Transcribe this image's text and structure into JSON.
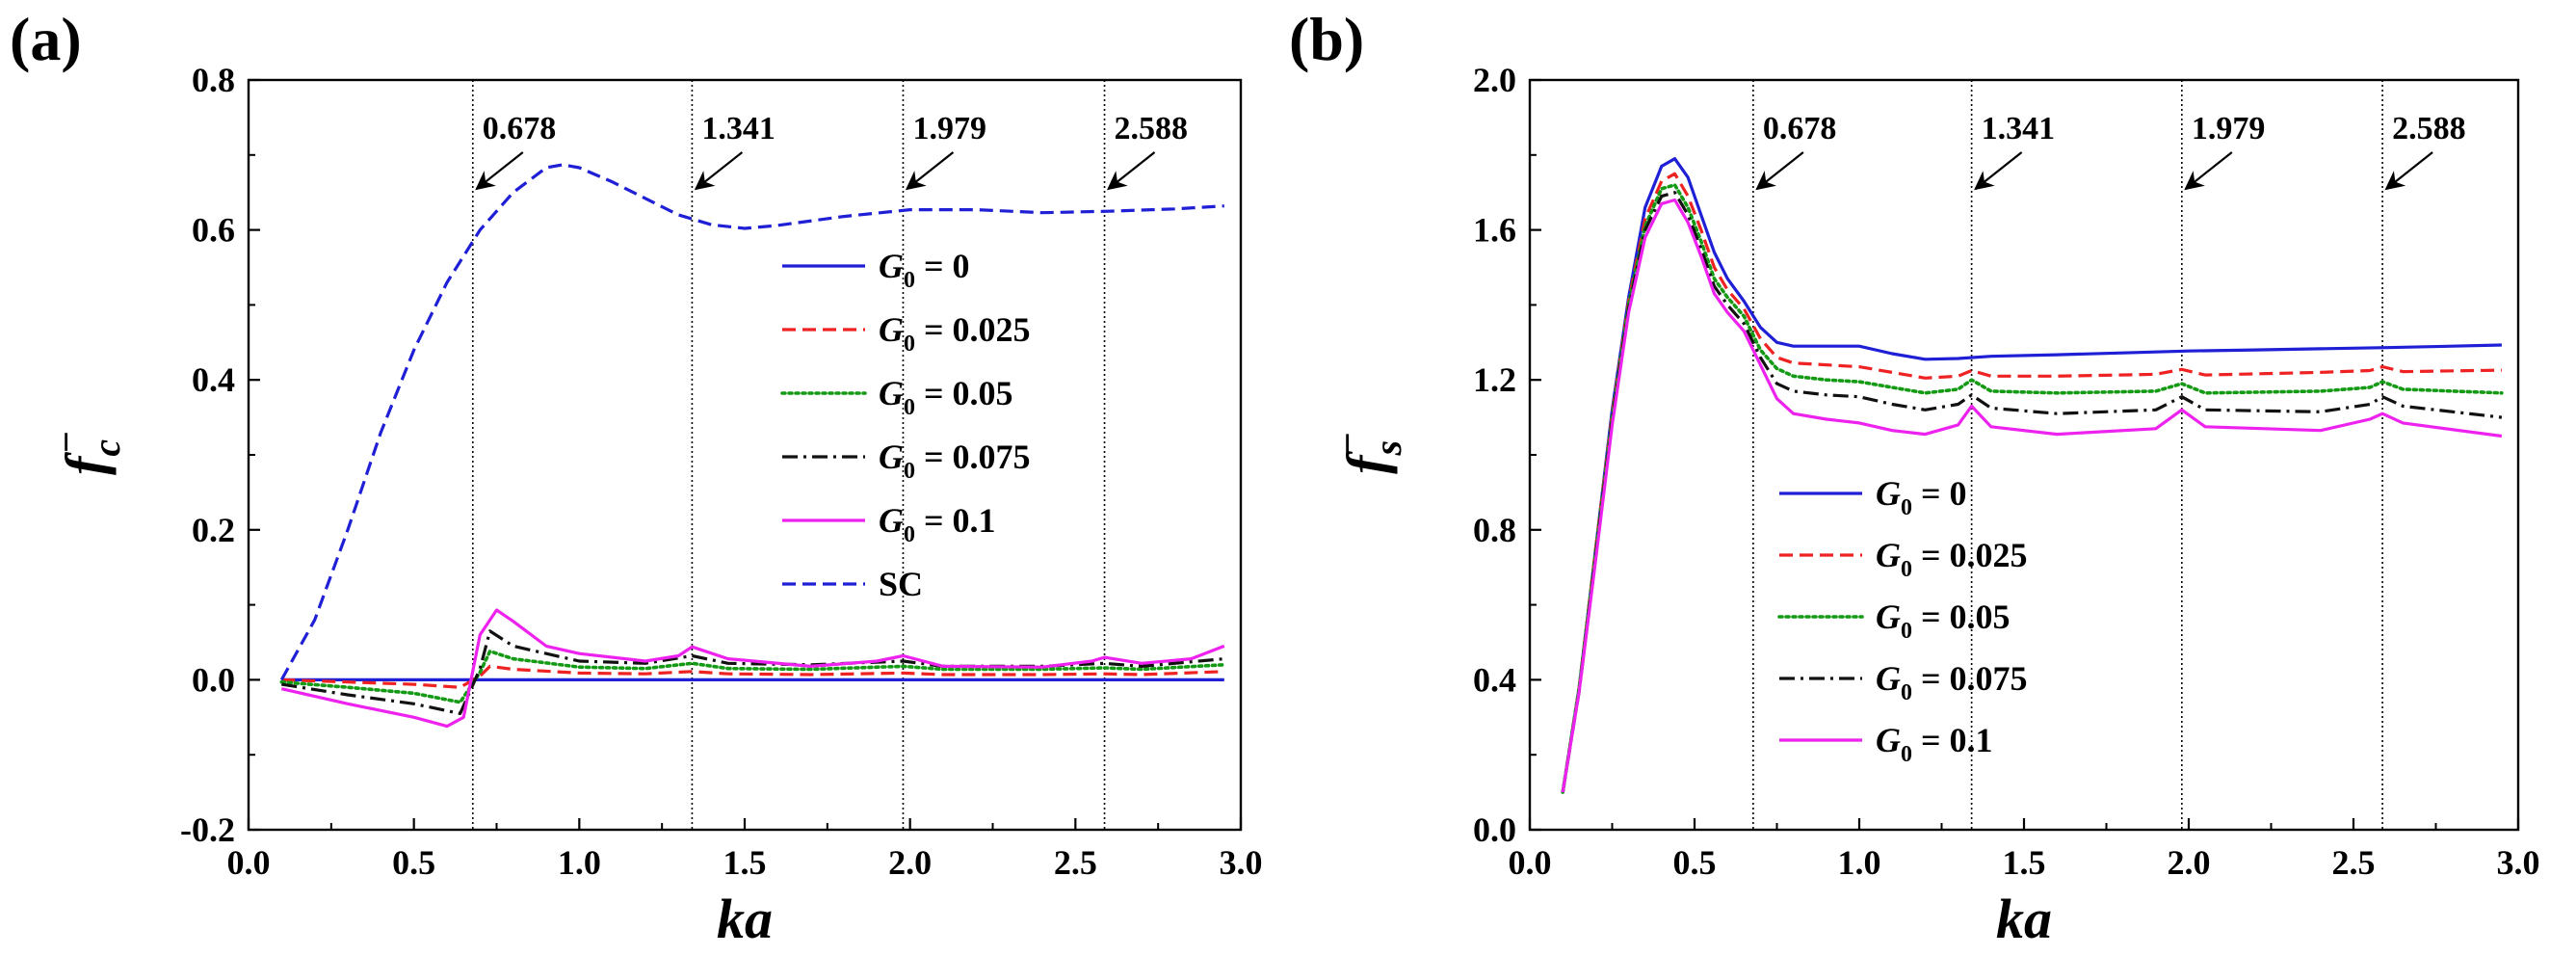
{
  "figure_labels": {
    "a": "(a)",
    "b": "(b)"
  },
  "colors": {
    "g0": "#1f1fd6",
    "g025": "#ee2222",
    "g05": "#159a15",
    "g075": "#111111",
    "g1": "#ee22ee",
    "sc": "#1f1fd6"
  },
  "chart_data": [
    {
      "id": "a",
      "type": "line",
      "panel_label": "(a)",
      "xlabel": "ka",
      "ylabel_main": "f",
      "ylabel_sub": "c",
      "ylabel_sup": "−",
      "xlim": [
        0.0,
        3.0
      ],
      "ylim": [
        -0.2,
        0.8
      ],
      "xticks": [
        "0.0",
        "0.5",
        "1.0",
        "1.5",
        "2.0",
        "2.5",
        "3.0"
      ],
      "yticks": [
        "-0.2",
        "0.0",
        "0.2",
        "0.4",
        "0.6",
        "0.8"
      ],
      "vlines": [
        {
          "x": 0.678,
          "label": "0.678"
        },
        {
          "x": 1.341,
          "label": "1.341"
        },
        {
          "x": 1.979,
          "label": "1.979"
        },
        {
          "x": 2.588,
          "label": "2.588"
        }
      ],
      "legend_position": "center-right",
      "series": [
        {
          "name": "G0 = 0",
          "value_text": " = 0",
          "style": "solid",
          "color_key": "g0",
          "x": [
            0.1,
            0.5,
            1.0,
            1.5,
            2.0,
            2.5,
            2.95
          ],
          "y": [
            0.0,
            0.0,
            0.0,
            0.0,
            0.0,
            0.0,
            0.0
          ]
        },
        {
          "name": "G0 = 0.025",
          "value_text": " = 0.025",
          "style": "dash",
          "color_key": "g025",
          "x": [
            0.1,
            0.3,
            0.5,
            0.64,
            0.7,
            0.73,
            0.8,
            1.0,
            1.2,
            1.341,
            1.45,
            1.7,
            1.979,
            2.1,
            2.4,
            2.588,
            2.7,
            2.95
          ],
          "y": [
            0.0,
            -0.003,
            -0.006,
            -0.01,
            0.005,
            0.018,
            0.014,
            0.009,
            0.008,
            0.011,
            0.008,
            0.007,
            0.009,
            0.007,
            0.007,
            0.008,
            0.007,
            0.011
          ]
        },
        {
          "name": "G0 = 0.05",
          "value_text": " = 0.05",
          "style": "dot",
          "color_key": "g05",
          "x": [
            0.1,
            0.3,
            0.5,
            0.64,
            0.7,
            0.73,
            0.8,
            1.0,
            1.2,
            1.341,
            1.45,
            1.7,
            1.979,
            2.1,
            2.4,
            2.588,
            2.7,
            2.95
          ],
          "y": [
            -0.003,
            -0.01,
            -0.018,
            -0.03,
            0.01,
            0.038,
            0.028,
            0.017,
            0.015,
            0.022,
            0.015,
            0.014,
            0.018,
            0.014,
            0.014,
            0.016,
            0.014,
            0.02
          ]
        },
        {
          "name": "G0 = 0.075",
          "value_text": " = 0.075",
          "style": "dashdot",
          "color_key": "g075",
          "x": [
            0.1,
            0.3,
            0.5,
            0.64,
            0.7,
            0.73,
            0.8,
            1.0,
            1.2,
            1.341,
            1.45,
            1.7,
            1.979,
            2.1,
            2.4,
            2.588,
            2.7,
            2.95
          ],
          "y": [
            -0.006,
            -0.02,
            -0.032,
            -0.045,
            0.015,
            0.065,
            0.045,
            0.025,
            0.022,
            0.032,
            0.022,
            0.02,
            0.025,
            0.018,
            0.018,
            0.022,
            0.018,
            0.028
          ]
        },
        {
          "name": "G0 = 0.1",
          "value_text": " = 0.1",
          "style": "solid",
          "color_key": "g1",
          "x": [
            0.1,
            0.3,
            0.5,
            0.6,
            0.65,
            0.7,
            0.75,
            0.8,
            0.9,
            1.0,
            1.2,
            1.3,
            1.341,
            1.45,
            1.7,
            1.9,
            1.979,
            2.1,
            2.4,
            2.55,
            2.588,
            2.7,
            2.85,
            2.95
          ],
          "y": [
            -0.012,
            -0.032,
            -0.05,
            -0.062,
            -0.05,
            0.06,
            0.093,
            0.078,
            0.045,
            0.035,
            0.025,
            0.032,
            0.044,
            0.028,
            0.018,
            0.025,
            0.032,
            0.018,
            0.017,
            0.025,
            0.03,
            0.022,
            0.028,
            0.045
          ]
        },
        {
          "name": "SC",
          "value_text": "SC",
          "style": "dash",
          "color_key": "sc",
          "x": [
            0.1,
            0.2,
            0.3,
            0.4,
            0.5,
            0.6,
            0.7,
            0.8,
            0.9,
            0.95,
            1.0,
            1.1,
            1.2,
            1.3,
            1.4,
            1.5,
            1.6,
            1.8,
            2.0,
            2.2,
            2.4,
            2.6,
            2.8,
            2.95
          ],
          "y": [
            0.0,
            0.08,
            0.2,
            0.33,
            0.44,
            0.53,
            0.6,
            0.65,
            0.683,
            0.687,
            0.683,
            0.664,
            0.642,
            0.62,
            0.607,
            0.602,
            0.606,
            0.618,
            0.627,
            0.627,
            0.623,
            0.625,
            0.628,
            0.632
          ]
        }
      ]
    },
    {
      "id": "b",
      "type": "line",
      "panel_label": "(b)",
      "xlabel": "ka",
      "ylabel_main": "f",
      "ylabel_sub": "s",
      "ylabel_sup": "−",
      "xlim": [
        0.0,
        3.0
      ],
      "ylim": [
        0.0,
        2.0
      ],
      "xticks": [
        "0.0",
        "0.5",
        "1.0",
        "1.5",
        "2.0",
        "2.5",
        "3.0"
      ],
      "yticks": [
        "0.0",
        "0.4",
        "0.8",
        "1.2",
        "1.6",
        "2.0"
      ],
      "vlines": [
        {
          "x": 0.678,
          "label": "0.678"
        },
        {
          "x": 1.341,
          "label": "1.341"
        },
        {
          "x": 1.979,
          "label": "1.979"
        },
        {
          "x": 2.588,
          "label": "2.588"
        }
      ],
      "legend_position": "center-left",
      "series": [
        {
          "name": "G0 = 0",
          "value_text": " = 0",
          "style": "solid",
          "color_key": "g0",
          "x": [
            0.1,
            0.15,
            0.2,
            0.25,
            0.3,
            0.35,
            0.4,
            0.44,
            0.48,
            0.52,
            0.56,
            0.6,
            0.65,
            0.7,
            0.75,
            0.8,
            0.9,
            1.0,
            1.1,
            1.2,
            1.3,
            1.4,
            1.6,
            1.8,
            2.0,
            2.2,
            2.4,
            2.6,
            2.8,
            2.95
          ],
          "y": [
            0.1,
            0.38,
            0.75,
            1.12,
            1.42,
            1.66,
            1.77,
            1.79,
            1.74,
            1.64,
            1.54,
            1.47,
            1.41,
            1.34,
            1.3,
            1.29,
            1.29,
            1.29,
            1.27,
            1.255,
            1.257,
            1.263,
            1.267,
            1.272,
            1.277,
            1.28,
            1.283,
            1.286,
            1.29,
            1.293
          ]
        },
        {
          "name": "G0 = 0.025",
          "value_text": " = 0.025",
          "style": "dash",
          "color_key": "g025",
          "x": [
            0.1,
            0.15,
            0.2,
            0.25,
            0.3,
            0.35,
            0.4,
            0.44,
            0.48,
            0.52,
            0.56,
            0.6,
            0.65,
            0.7,
            0.75,
            0.8,
            0.9,
            1.0,
            1.1,
            1.2,
            1.3,
            1.341,
            1.4,
            1.6,
            1.9,
            1.979,
            2.05,
            2.4,
            2.55,
            2.588,
            2.65,
            2.95
          ],
          "y": [
            0.1,
            0.38,
            0.75,
            1.11,
            1.41,
            1.63,
            1.73,
            1.75,
            1.69,
            1.6,
            1.5,
            1.44,
            1.39,
            1.31,
            1.26,
            1.245,
            1.24,
            1.235,
            1.22,
            1.205,
            1.21,
            1.225,
            1.21,
            1.21,
            1.215,
            1.228,
            1.213,
            1.22,
            1.225,
            1.235,
            1.222,
            1.226
          ]
        },
        {
          "name": "G0 = 0.05",
          "value_text": " = 0.05",
          "style": "dot",
          "color_key": "g05",
          "x": [
            0.1,
            0.15,
            0.2,
            0.25,
            0.3,
            0.35,
            0.4,
            0.44,
            0.48,
            0.52,
            0.56,
            0.6,
            0.65,
            0.7,
            0.75,
            0.8,
            0.9,
            1.0,
            1.1,
            1.2,
            1.3,
            1.341,
            1.4,
            1.6,
            1.9,
            1.979,
            2.05,
            2.4,
            2.55,
            2.588,
            2.65,
            2.95
          ],
          "y": [
            0.1,
            0.38,
            0.74,
            1.1,
            1.4,
            1.61,
            1.71,
            1.72,
            1.66,
            1.57,
            1.47,
            1.42,
            1.37,
            1.28,
            1.23,
            1.21,
            1.2,
            1.195,
            1.18,
            1.165,
            1.175,
            1.2,
            1.17,
            1.165,
            1.17,
            1.19,
            1.165,
            1.17,
            1.18,
            1.195,
            1.175,
            1.165
          ]
        },
        {
          "name": "G0 = 0.075",
          "value_text": " = 0.075",
          "style": "dashdot",
          "color_key": "g075",
          "x": [
            0.1,
            0.15,
            0.2,
            0.25,
            0.3,
            0.35,
            0.4,
            0.44,
            0.48,
            0.52,
            0.56,
            0.6,
            0.65,
            0.7,
            0.75,
            0.8,
            0.9,
            1.0,
            1.1,
            1.2,
            1.3,
            1.341,
            1.4,
            1.6,
            1.9,
            1.979,
            2.05,
            2.4,
            2.55,
            2.588,
            2.65,
            2.95
          ],
          "y": [
            0.1,
            0.37,
            0.73,
            1.09,
            1.39,
            1.6,
            1.69,
            1.7,
            1.64,
            1.55,
            1.45,
            1.4,
            1.35,
            1.26,
            1.19,
            1.17,
            1.16,
            1.155,
            1.135,
            1.12,
            1.135,
            1.16,
            1.125,
            1.11,
            1.12,
            1.155,
            1.12,
            1.115,
            1.135,
            1.155,
            1.13,
            1.1
          ]
        },
        {
          "name": "G0 = 0.1",
          "value_text": " = 0.1",
          "style": "solid",
          "color_key": "g1",
          "x": [
            0.1,
            0.15,
            0.2,
            0.25,
            0.3,
            0.35,
            0.4,
            0.44,
            0.48,
            0.52,
            0.56,
            0.6,
            0.65,
            0.7,
            0.75,
            0.8,
            0.9,
            1.0,
            1.1,
            1.2,
            1.3,
            1.341,
            1.4,
            1.6,
            1.9,
            1.979,
            2.05,
            2.4,
            2.55,
            2.588,
            2.65,
            2.95
          ],
          "y": [
            0.1,
            0.37,
            0.72,
            1.08,
            1.38,
            1.58,
            1.67,
            1.68,
            1.62,
            1.53,
            1.43,
            1.38,
            1.33,
            1.24,
            1.15,
            1.11,
            1.095,
            1.085,
            1.065,
            1.055,
            1.08,
            1.13,
            1.075,
            1.055,
            1.07,
            1.12,
            1.075,
            1.065,
            1.095,
            1.11,
            1.085,
            1.05
          ]
        }
      ]
    }
  ]
}
